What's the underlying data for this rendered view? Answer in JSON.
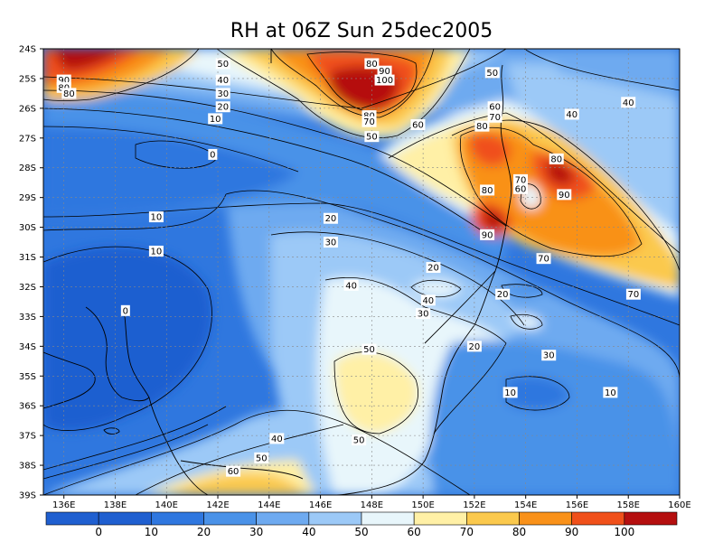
{
  "title": "RH at 06Z Sun 25dec2005",
  "palette": {
    "0": "#1f5fd0",
    "10": "#2f77df",
    "20": "#4a92e8",
    "30": "#6eaaf0",
    "40": "#9cc9f7",
    "50": "#e8f6fb",
    "60": "#fff0a6",
    "70": "#fbc94d",
    "80": "#f99119",
    "90": "#f0501a",
    "100": "#b50f0f",
    "coast": "#000000",
    "contour": "#000000",
    "grid": "#888888"
  },
  "lat_ticks": [
    "24S",
    "25S",
    "26S",
    "27S",
    "28S",
    "29S",
    "30S",
    "31S",
    "32S",
    "33S",
    "34S",
    "35S",
    "36S",
    "37S",
    "38S",
    "39S"
  ],
  "lon_ticks": [
    "136E",
    "138E",
    "140E",
    "142E",
    "144E",
    "146E",
    "148E",
    "150E",
    "152E",
    "154E",
    "156E",
    "158E",
    "160E"
  ],
  "colorbar_labels": [
    "0",
    "10",
    "20",
    "30",
    "40",
    "50",
    "60",
    "70",
    "80",
    "90",
    "100"
  ],
  "contour_labels": [
    {
      "id": "l-tl-90a",
      "text": "90",
      "lon": 136.0,
      "lat": -25.05
    },
    {
      "id": "l-tl-90b",
      "text": "80",
      "lon": 136.0,
      "lat": -25.3
    },
    {
      "id": "l-tl-80",
      "text": "80",
      "lon": 136.2,
      "lat": -25.5
    },
    {
      "id": "l-tl-50",
      "text": "50",
      "lon": 142.2,
      "lat": -24.5
    },
    {
      "id": "l-tl-40",
      "text": "40",
      "lon": 142.2,
      "lat": -25.05
    },
    {
      "id": "l-tl-30",
      "text": "30",
      "lon": 142.2,
      "lat": -25.5
    },
    {
      "id": "l-tl-20",
      "text": "20",
      "lon": 142.2,
      "lat": -25.95
    },
    {
      "id": "l-tl-10",
      "text": "10",
      "lon": 141.9,
      "lat": -26.35
    },
    {
      "id": "l-0-a",
      "text": "0",
      "lon": 141.8,
      "lat": -27.55
    },
    {
      "id": "l-10-a",
      "text": "10",
      "lon": 139.6,
      "lat": -29.65
    },
    {
      "id": "l-10-b",
      "text": "10",
      "lon": 139.6,
      "lat": -30.8
    },
    {
      "id": "l-0-b",
      "text": "0",
      "lon": 138.4,
      "lat": -32.8
    },
    {
      "id": "l-80-top",
      "text": "80",
      "lon": 148.0,
      "lat": -24.5
    },
    {
      "id": "l-90-top",
      "text": "90",
      "lon": 148.5,
      "lat": -24.75
    },
    {
      "id": "l-100-top",
      "text": "100",
      "lon": 148.5,
      "lat": -25.05
    },
    {
      "id": "l-80-top2",
      "text": "80",
      "lon": 147.9,
      "lat": -26.25
    },
    {
      "id": "l-70-top",
      "text": "70",
      "lon": 147.9,
      "lat": -26.45
    },
    {
      "id": "l-50-mid",
      "text": "50",
      "lon": 148.0,
      "lat": -26.95
    },
    {
      "id": "l-60-mid",
      "text": "60",
      "lon": 149.8,
      "lat": -26.55
    },
    {
      "id": "l-50-r",
      "text": "50",
      "lon": 152.7,
      "lat": -24.8
    },
    {
      "id": "l-60-r",
      "text": "60",
      "lon": 152.8,
      "lat": -25.95
    },
    {
      "id": "l-70-r",
      "text": "70",
      "lon": 152.8,
      "lat": -26.3
    },
    {
      "id": "l-80-r",
      "text": "80",
      "lon": 152.3,
      "lat": -26.6
    },
    {
      "id": "l-40-r",
      "text": "40",
      "lon": 155.8,
      "lat": -26.2
    },
    {
      "id": "l-40-r2",
      "text": "40",
      "lon": 158.0,
      "lat": -25.8
    },
    {
      "id": "l-80-r2",
      "text": "80",
      "lon": 155.2,
      "lat": -27.7
    },
    {
      "id": "l-70-r2",
      "text": "70",
      "lon": 153.8,
      "lat": -28.4
    },
    {
      "id": "l-60-r2",
      "text": "60",
      "lon": 153.8,
      "lat": -28.7
    },
    {
      "id": "l-80-r3",
      "text": "80",
      "lon": 152.5,
      "lat": -28.75
    },
    {
      "id": "l-90-r",
      "text": "90",
      "lon": 155.5,
      "lat": -28.9
    },
    {
      "id": "l-20-m",
      "text": "20",
      "lon": 146.4,
      "lat": -29.7
    },
    {
      "id": "l-30-m",
      "text": "30",
      "lon": 146.4,
      "lat": -30.5
    },
    {
      "id": "l-90-r2",
      "text": "90",
      "lon": 152.5,
      "lat": -30.25
    },
    {
      "id": "l-70-r3",
      "text": "70",
      "lon": 154.7,
      "lat": -31.05
    },
    {
      "id": "l-20-r",
      "text": "20",
      "lon": 150.4,
      "lat": -31.35
    },
    {
      "id": "l-40-m",
      "text": "40",
      "lon": 147.2,
      "lat": -31.95
    },
    {
      "id": "l-40-m2",
      "text": "40",
      "lon": 150.2,
      "lat": -32.45
    },
    {
      "id": "l-20-r2",
      "text": "20",
      "lon": 153.1,
      "lat": -32.25
    },
    {
      "id": "l-70-r4",
      "text": "70",
      "lon": 158.2,
      "lat": -32.25
    },
    {
      "id": "l-30-r",
      "text": "30",
      "lon": 150.0,
      "lat": -32.9
    },
    {
      "id": "l-50-m",
      "text": "50",
      "lon": 147.9,
      "lat": -34.1
    },
    {
      "id": "l-20-r3",
      "text": "20",
      "lon": 152.0,
      "lat": -34.0
    },
    {
      "id": "l-30-r2",
      "text": "30",
      "lon": 154.9,
      "lat": -34.3
    },
    {
      "id": "l-10-r",
      "text": "10",
      "lon": 153.4,
      "lat": -35.55
    },
    {
      "id": "l-10-r2",
      "text": "10",
      "lon": 157.3,
      "lat": -35.55
    },
    {
      "id": "l-40-b",
      "text": "40",
      "lon": 144.3,
      "lat": -37.1
    },
    {
      "id": "l-50-b",
      "text": "50",
      "lon": 147.5,
      "lat": -37.15
    },
    {
      "id": "l-50-b2",
      "text": "50",
      "lon": 143.7,
      "lat": -37.75
    },
    {
      "id": "l-60-b",
      "text": "60",
      "lon": 142.6,
      "lat": -38.2
    }
  ]
}
